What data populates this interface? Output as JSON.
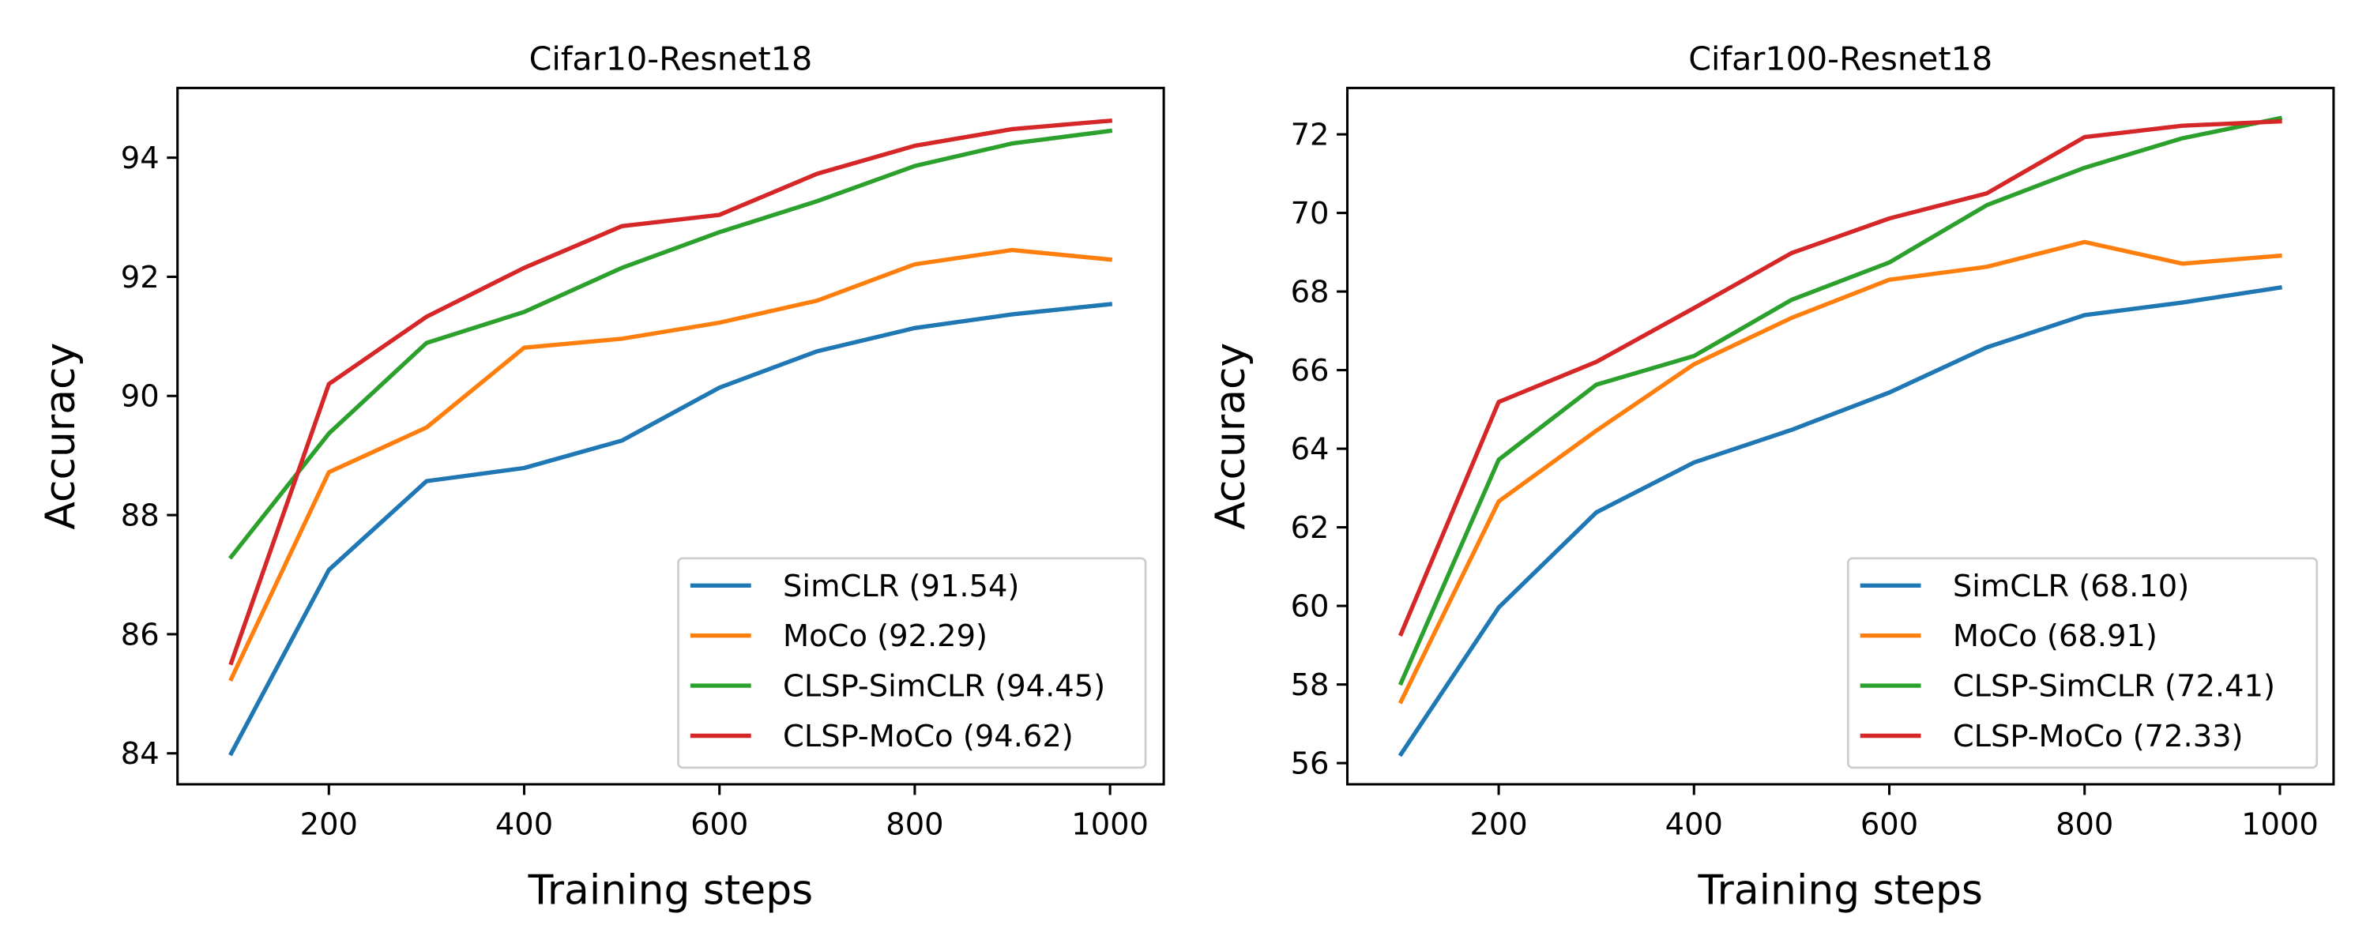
{
  "chart_data": [
    {
      "type": "line",
      "title": "Cifar10-Resnet18",
      "xlabel": "Training steps",
      "ylabel": "Accuracy",
      "x": [
        100,
        200,
        300,
        400,
        500,
        600,
        700,
        800,
        900,
        1000
      ],
      "xlim": [
        45,
        1055
      ],
      "ylim": [
        83.48,
        95.17
      ],
      "xticks": [
        200,
        400,
        600,
        800,
        1000
      ],
      "yticks": [
        84,
        86,
        88,
        90,
        92,
        94
      ],
      "grid": false,
      "legend_position": "lower right",
      "series": [
        {
          "name": "SimCLR (91.54)",
          "color": "#1f77b4",
          "values": [
            84.0,
            87.08,
            88.57,
            88.79,
            89.25,
            90.14,
            90.75,
            91.14,
            91.37,
            91.54
          ]
        },
        {
          "name": "MoCo (92.29)",
          "color": "#ff7f0e",
          "values": [
            85.25,
            88.72,
            89.47,
            90.81,
            90.96,
            91.23,
            91.6,
            92.21,
            92.45,
            92.29
          ]
        },
        {
          "name": "CLSP-SimCLR (94.45)",
          "color": "#2ca02c",
          "values": [
            87.3,
            89.37,
            90.89,
            91.41,
            92.15,
            92.75,
            93.27,
            93.86,
            94.24,
            94.45
          ]
        },
        {
          "name": "CLSP-MoCo (94.62)",
          "color": "#d62728",
          "values": [
            85.52,
            90.2,
            91.33,
            92.15,
            92.85,
            93.04,
            93.73,
            94.2,
            94.48,
            94.62
          ]
        }
      ]
    },
    {
      "type": "line",
      "title": "Cifar100-Resnet18",
      "xlabel": "Training steps",
      "ylabel": "Accuracy",
      "x": [
        100,
        200,
        300,
        400,
        500,
        600,
        700,
        800,
        900,
        1000
      ],
      "xlim": [
        45,
        1055
      ],
      "ylim": [
        55.46,
        73.18
      ],
      "xticks": [
        200,
        400,
        600,
        800,
        1000
      ],
      "yticks": [
        56,
        58,
        60,
        62,
        64,
        66,
        68,
        70,
        72
      ],
      "grid": false,
      "legend_position": "lower right",
      "series": [
        {
          "name": "SimCLR (68.10)",
          "color": "#1f77b4",
          "values": [
            56.23,
            59.96,
            62.38,
            63.65,
            64.48,
            65.43,
            66.58,
            67.4,
            67.72,
            68.1
          ]
        },
        {
          "name": "MoCo (68.91)",
          "color": "#ff7f0e",
          "values": [
            57.57,
            62.66,
            64.46,
            66.15,
            67.33,
            68.3,
            68.63,
            69.26,
            68.71,
            68.91
          ]
        },
        {
          "name": "CLSP-SimCLR (72.41)",
          "color": "#2ca02c",
          "values": [
            58.04,
            63.72,
            65.63,
            66.36,
            67.79,
            68.74,
            70.2,
            71.15,
            71.9,
            72.41
          ]
        },
        {
          "name": "CLSP-MoCo (72.33)",
          "color": "#d62728",
          "values": [
            59.29,
            65.19,
            66.21,
            67.58,
            68.98,
            69.86,
            70.5,
            71.93,
            72.22,
            72.33
          ]
        }
      ]
    }
  ]
}
